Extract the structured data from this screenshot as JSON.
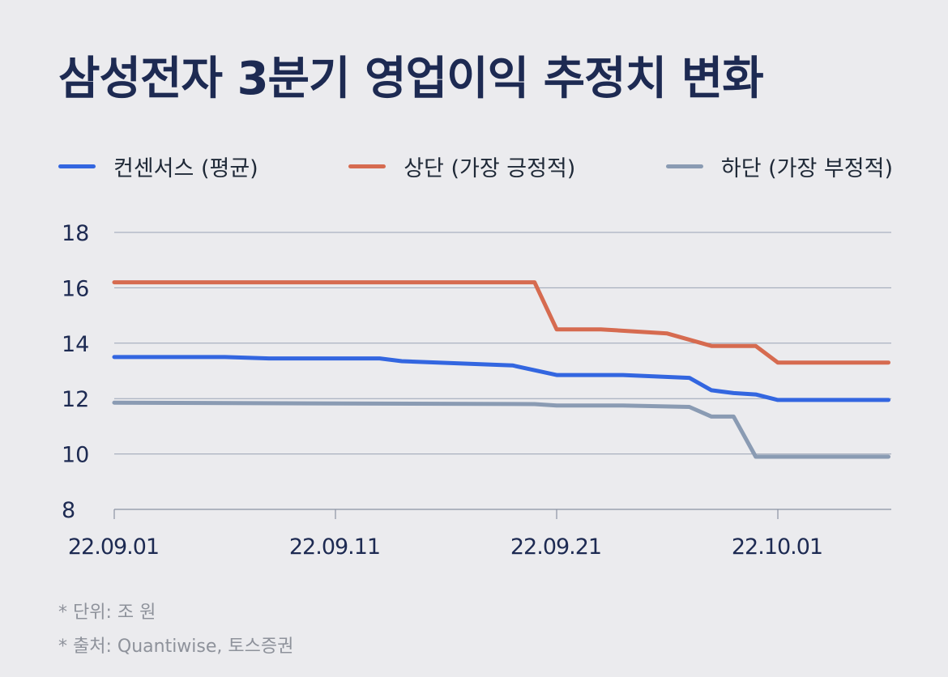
{
  "title": "삼성전자 3분기 영업이익 추정치 변화",
  "notes": [
    "* 단위: 조 원",
    "* 출처: Quantiwise, 토스증권"
  ],
  "chart_data": {
    "type": "line",
    "title": "삼성전자 3분기 영업이익 추정치 변화",
    "xlabel": "",
    "ylabel": "",
    "unit": "조 원",
    "ylim": [
      8,
      18
    ],
    "yticks": [
      "8",
      "10",
      "12",
      "14",
      "16",
      "18"
    ],
    "x_range": [
      "2022-09-01",
      "2022-10-06"
    ],
    "xticks": [
      {
        "date": "2022-09-01",
        "label": "22.09.01"
      },
      {
        "date": "2022-09-11",
        "label": "22.09.11"
      },
      {
        "date": "2022-09-21",
        "label": "22.09.21"
      },
      {
        "date": "2022-10-01",
        "label": "22.10.01"
      }
    ],
    "grid": true,
    "legend_position": "top",
    "series": [
      {
        "name": "컨센서스 (평균)",
        "color": "#3366e0",
        "points": [
          [
            "2022-09-01",
            13.5
          ],
          [
            "2022-09-06",
            13.5
          ],
          [
            "2022-09-08",
            13.45
          ],
          [
            "2022-09-13",
            13.45
          ],
          [
            "2022-09-14",
            13.35
          ],
          [
            "2022-09-19",
            13.2
          ],
          [
            "2022-09-21",
            12.85
          ],
          [
            "2022-09-24",
            12.85
          ],
          [
            "2022-09-27",
            12.75
          ],
          [
            "2022-09-28",
            12.3
          ],
          [
            "2022-09-29",
            12.2
          ],
          [
            "2022-09-30",
            12.15
          ],
          [
            "2022-10-01",
            11.95
          ],
          [
            "2022-10-06",
            11.95
          ]
        ]
      },
      {
        "name": "상단 (가장 긍정적)",
        "color": "#d66b50",
        "points": [
          [
            "2022-09-01",
            16.2
          ],
          [
            "2022-09-20",
            16.2
          ],
          [
            "2022-09-21",
            14.5
          ],
          [
            "2022-09-23",
            14.5
          ],
          [
            "2022-09-26",
            14.35
          ],
          [
            "2022-09-28",
            13.9
          ],
          [
            "2022-09-30",
            13.9
          ],
          [
            "2022-10-01",
            13.3
          ],
          [
            "2022-10-06",
            13.3
          ]
        ]
      },
      {
        "name": "하단 (가장 부정적)",
        "color": "#8a9bb3",
        "points": [
          [
            "2022-09-01",
            11.85
          ],
          [
            "2022-09-20",
            11.8
          ],
          [
            "2022-09-21",
            11.75
          ],
          [
            "2022-09-24",
            11.75
          ],
          [
            "2022-09-27",
            11.7
          ],
          [
            "2022-09-28",
            11.35
          ],
          [
            "2022-09-29",
            11.35
          ],
          [
            "2022-09-30",
            9.9
          ],
          [
            "2022-10-06",
            9.9
          ]
        ]
      }
    ]
  }
}
